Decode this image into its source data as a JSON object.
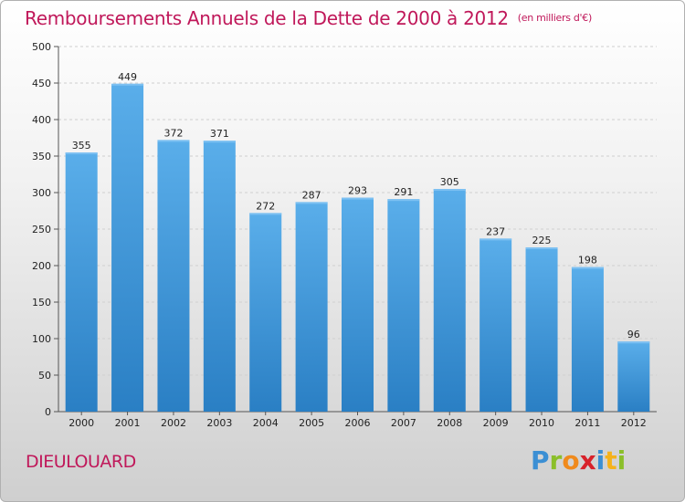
{
  "header": {
    "title": "Remboursements Annuels de la Dette de 2000 à 2012",
    "subtitle": "(en milliers d'€)"
  },
  "footer": {
    "commune": "DIEULOUARD",
    "logo_letters": [
      "P",
      "r",
      "o",
      "x",
      "i",
      "t",
      "i"
    ],
    "logo_colors": [
      "#3b8fd4",
      "#8bbf2a",
      "#f08a1c",
      "#d8222b",
      "#3b8fd4",
      "#f5b21b",
      "#8bbf2a"
    ]
  },
  "chart_data": {
    "type": "bar",
    "categories": [
      "2000",
      "2001",
      "2002",
      "2003",
      "2004",
      "2005",
      "2006",
      "2007",
      "2008",
      "2009",
      "2010",
      "2011",
      "2012"
    ],
    "values": [
      355,
      449,
      372,
      371,
      272,
      287,
      293,
      291,
      305,
      237,
      225,
      198,
      96
    ],
    "data_labels": [
      "355",
      "449",
      "372",
      "371",
      "272",
      "287",
      "293",
      "291",
      "305",
      "237",
      "225",
      "198",
      "96"
    ],
    "ylim": [
      0,
      500
    ],
    "yticks": [
      0,
      50,
      100,
      150,
      200,
      250,
      300,
      350,
      400,
      450,
      500
    ],
    "grid": true,
    "bar_color": "#4a9fe0"
  }
}
